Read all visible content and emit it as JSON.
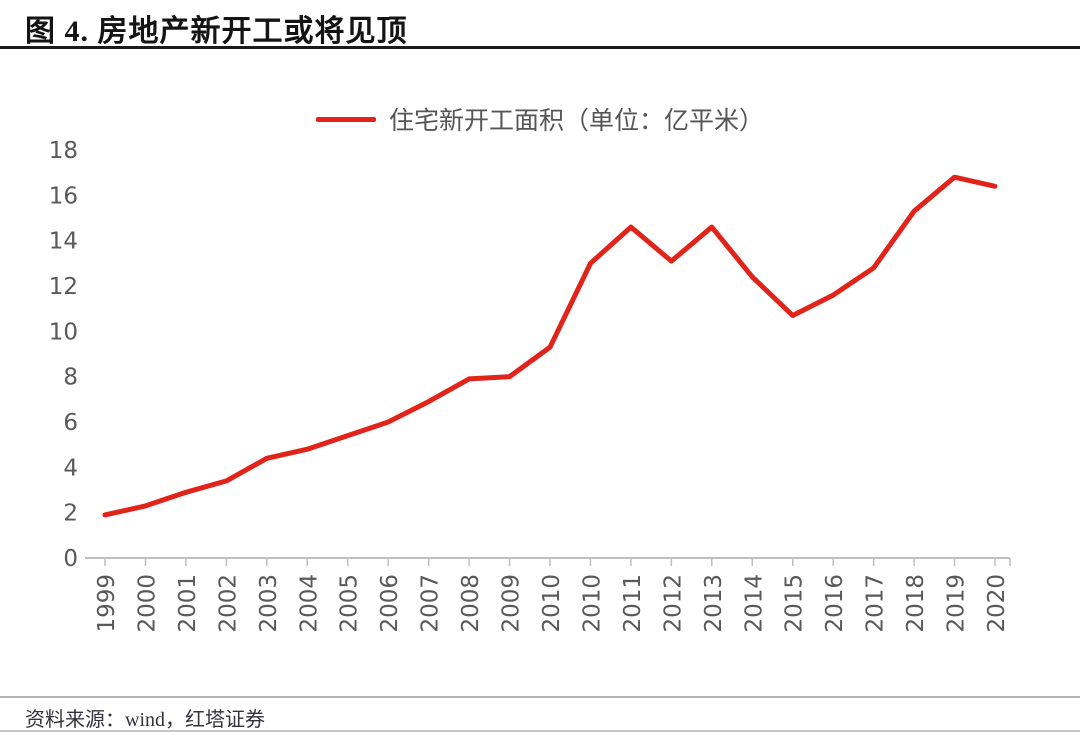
{
  "header": {
    "title": "图 4. 房地产新开工或将见顶"
  },
  "legend": {
    "label": "住宅新开工面积（单位：亿平米）"
  },
  "footer": {
    "source": "资料来源：wind，红塔证券"
  },
  "colors": {
    "line": "#e2231a",
    "axis": "#bfbfbf",
    "tick_label": "#595959",
    "title_text": "#141414"
  },
  "chart_data": {
    "type": "line",
    "title": "图 4. 房地产新开工或将见顶",
    "legend": [
      "住宅新开工面积（单位：亿平米）"
    ],
    "legend_position": "top",
    "categories": [
      "1999",
      "2000",
      "2001",
      "2002",
      "2003",
      "2004",
      "2005",
      "2006",
      "2007",
      "2008",
      "2009",
      "2010",
      "2010",
      "2011",
      "2012",
      "2013",
      "2014",
      "2015",
      "2016",
      "2017",
      "2018",
      "2019",
      "2020"
    ],
    "values": [
      1.9,
      2.3,
      2.9,
      3.4,
      4.4,
      4.8,
      5.4,
      6.0,
      6.9,
      7.9,
      8.0,
      9.3,
      13.0,
      14.6,
      13.1,
      14.6,
      12.4,
      10.7,
      11.6,
      12.8,
      15.3,
      16.8,
      16.4
    ],
    "xlabel": "",
    "ylabel": "",
    "ylim": [
      0,
      18
    ],
    "yticks": [
      0,
      2,
      4,
      6,
      8,
      10,
      12,
      14,
      16,
      18
    ],
    "grid": false,
    "x_tick_label_rotation": -90,
    "line_color": "#e2231a",
    "source_note": "资料来源：wind，红塔证券"
  }
}
